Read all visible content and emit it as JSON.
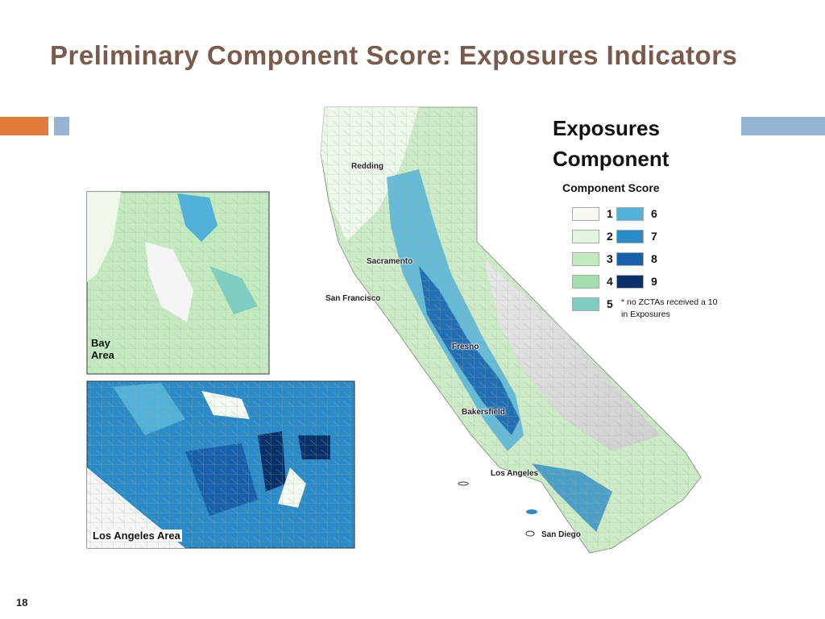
{
  "title": "Preliminary Component Score: Exposures Indicators",
  "legend": {
    "title": "Exposures Component",
    "subtitle": "Component Score",
    "items": [
      {
        "label": 1,
        "color": "#f5faf2"
      },
      {
        "label": 2,
        "color": "#e3f4e0"
      },
      {
        "label": 3,
        "color": "#c4ebbf"
      },
      {
        "label": 4,
        "color": "#a3dfae"
      },
      {
        "label": 5,
        "color": "#7fccc0"
      },
      {
        "label": 6,
        "color": "#52b1d9"
      },
      {
        "label": 7,
        "color": "#2b8bc8"
      },
      {
        "label": 8,
        "color": "#1660ae"
      },
      {
        "label": 9,
        "color": "#08306b"
      }
    ],
    "note": "* no ZCTAs received a 10 in Exposures"
  },
  "map": {
    "cities": [
      "Redding",
      "Sacramento",
      "San Francisco",
      "Fresno",
      "Bakersfield",
      "Los Angeles",
      "San Diego"
    ],
    "insets": [
      "Bay Area",
      "Los Angeles Area"
    ]
  },
  "slide_number": "18"
}
